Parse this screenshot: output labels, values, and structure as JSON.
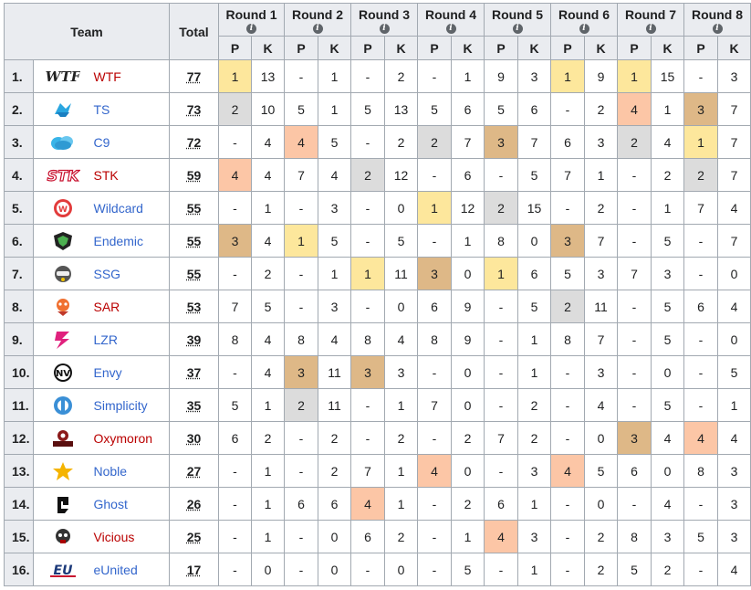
{
  "header": {
    "team": "Team",
    "total": "Total",
    "rounds": [
      "Round 1",
      "Round 2",
      "Round 3",
      "Round 4",
      "Round 5",
      "Round 6",
      "Round 7",
      "Round 8"
    ],
    "p": "P",
    "k": "K"
  },
  "colors": {
    "first": "#fde79c",
    "second": "#dcdcdc",
    "third": "#deb887",
    "fourth": "#fcc6a6",
    "link_blue": "#3366cc",
    "link_red": "#ba0000"
  },
  "rows": [
    {
      "rank": "1.",
      "logo": "wtf-logo",
      "name": "WTF",
      "link": "red",
      "total": "77",
      "cells": [
        "1",
        "13",
        "-",
        "1",
        "-",
        "2",
        "-",
        "1",
        "9",
        "3",
        "1",
        "9",
        "1",
        "15",
        "-",
        "3"
      ]
    },
    {
      "rank": "2.",
      "logo": "ts-logo",
      "name": "TS",
      "link": "blue",
      "total": "73",
      "cells": [
        "2",
        "10",
        "5",
        "1",
        "5",
        "13",
        "5",
        "6",
        "5",
        "6",
        "-",
        "2",
        "4",
        "1",
        "3",
        "7"
      ]
    },
    {
      "rank": "3.",
      "logo": "c9-logo",
      "name": "C9",
      "link": "blue",
      "total": "72",
      "cells": [
        "-",
        "4",
        "4",
        "5",
        "-",
        "2",
        "2",
        "7",
        "3",
        "7",
        "6",
        "3",
        "2",
        "4",
        "1",
        "7"
      ]
    },
    {
      "rank": "4.",
      "logo": "stk-logo",
      "name": "STK",
      "link": "red",
      "total": "59",
      "cells": [
        "4",
        "4",
        "7",
        "4",
        "2",
        "12",
        "-",
        "6",
        "-",
        "5",
        "7",
        "1",
        "-",
        "2",
        "2",
        "7"
      ]
    },
    {
      "rank": "5.",
      "logo": "wildcard-logo",
      "name": "Wildcard",
      "link": "blue",
      "total": "55",
      "cells": [
        "-",
        "1",
        "-",
        "3",
        "-",
        "0",
        "1",
        "12",
        "2",
        "15",
        "-",
        "2",
        "-",
        "1",
        "7",
        "4"
      ]
    },
    {
      "rank": "6.",
      "logo": "endemic-logo",
      "name": "Endemic",
      "link": "blue",
      "total": "55",
      "cells": [
        "3",
        "4",
        "1",
        "5",
        "-",
        "5",
        "-",
        "1",
        "8",
        "0",
        "3",
        "7",
        "-",
        "5",
        "-",
        "7"
      ]
    },
    {
      "rank": "7.",
      "logo": "ssg-logo",
      "name": "SSG",
      "link": "blue",
      "total": "55",
      "cells": [
        "-",
        "2",
        "-",
        "1",
        "1",
        "11",
        "3",
        "0",
        "1",
        "6",
        "5",
        "3",
        "7",
        "3",
        "-",
        "0"
      ]
    },
    {
      "rank": "8.",
      "logo": "sar-logo",
      "name": "SAR",
      "link": "red",
      "total": "53",
      "cells": [
        "7",
        "5",
        "-",
        "3",
        "-",
        "0",
        "6",
        "9",
        "-",
        "5",
        "2",
        "11",
        "-",
        "5",
        "6",
        "4"
      ]
    },
    {
      "rank": "9.",
      "logo": "lzr-logo",
      "name": "LZR",
      "link": "blue",
      "total": "39",
      "cells": [
        "8",
        "4",
        "8",
        "4",
        "8",
        "4",
        "8",
        "9",
        "-",
        "1",
        "8",
        "7",
        "-",
        "5",
        "-",
        "0"
      ]
    },
    {
      "rank": "10.",
      "logo": "envy-logo",
      "name": "Envy",
      "link": "blue",
      "total": "37",
      "cells": [
        "-",
        "4",
        "3",
        "11",
        "3",
        "3",
        "-",
        "0",
        "-",
        "1",
        "-",
        "3",
        "-",
        "0",
        "-",
        "5"
      ]
    },
    {
      "rank": "11.",
      "logo": "simplicity-logo",
      "name": "Simplicity",
      "link": "blue",
      "total": "35",
      "cells": [
        "5",
        "1",
        "2",
        "11",
        "-",
        "1",
        "7",
        "0",
        "-",
        "2",
        "-",
        "4",
        "-",
        "5",
        "-",
        "1"
      ]
    },
    {
      "rank": "12.",
      "logo": "oxymoron-logo",
      "name": "Oxymoron",
      "link": "red",
      "total": "30",
      "cells": [
        "6",
        "2",
        "-",
        "2",
        "-",
        "2",
        "-",
        "2",
        "7",
        "2",
        "-",
        "0",
        "3",
        "4",
        "4",
        "4"
      ]
    },
    {
      "rank": "13.",
      "logo": "noble-logo",
      "name": "Noble",
      "link": "blue",
      "total": "27",
      "cells": [
        "-",
        "1",
        "-",
        "2",
        "7",
        "1",
        "4",
        "0",
        "-",
        "3",
        "4",
        "5",
        "6",
        "0",
        "8",
        "3"
      ]
    },
    {
      "rank": "14.",
      "logo": "ghost-logo",
      "name": "Ghost",
      "link": "blue",
      "total": "26",
      "cells": [
        "-",
        "1",
        "6",
        "6",
        "4",
        "1",
        "-",
        "2",
        "6",
        "1",
        "-",
        "0",
        "-",
        "4",
        "-",
        "3"
      ]
    },
    {
      "rank": "15.",
      "logo": "vicious-logo",
      "name": "Vicious",
      "link": "red",
      "total": "25",
      "cells": [
        "-",
        "1",
        "-",
        "0",
        "6",
        "2",
        "-",
        "1",
        "4",
        "3",
        "-",
        "2",
        "8",
        "3",
        "5",
        "3"
      ]
    },
    {
      "rank": "16.",
      "logo": "eunited-logo",
      "name": "eUnited",
      "link": "blue",
      "total": "17",
      "cells": [
        "-",
        "0",
        "-",
        "0",
        "-",
        "0",
        "-",
        "5",
        "-",
        "1",
        "-",
        "2",
        "5",
        "2",
        "-",
        "4"
      ]
    }
  ]
}
